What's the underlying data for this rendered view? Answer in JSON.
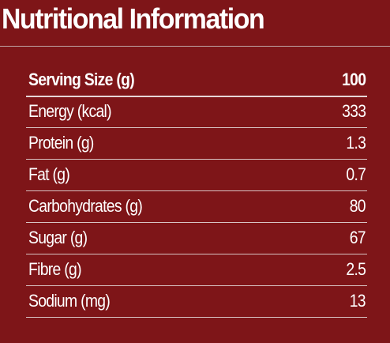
{
  "title": "Nutritional Information",
  "colors": {
    "background": "#7e1518",
    "text": "#ffffff"
  },
  "table": {
    "header": {
      "label": "Serving Size (g)",
      "value": "100"
    },
    "rows": [
      {
        "label": "Energy (kcal)",
        "value": "333"
      },
      {
        "label": "Protein (g)",
        "value": "1.3"
      },
      {
        "label": "Fat (g)",
        "value": "0.7"
      },
      {
        "label": "Carbohydrates (g)",
        "value": "80"
      },
      {
        "label": "Sugar (g)",
        "value": "67"
      },
      {
        "label": "Fibre (g)",
        "value": "2.5"
      },
      {
        "label": "Sodium (mg)",
        "value": "13"
      }
    ]
  }
}
